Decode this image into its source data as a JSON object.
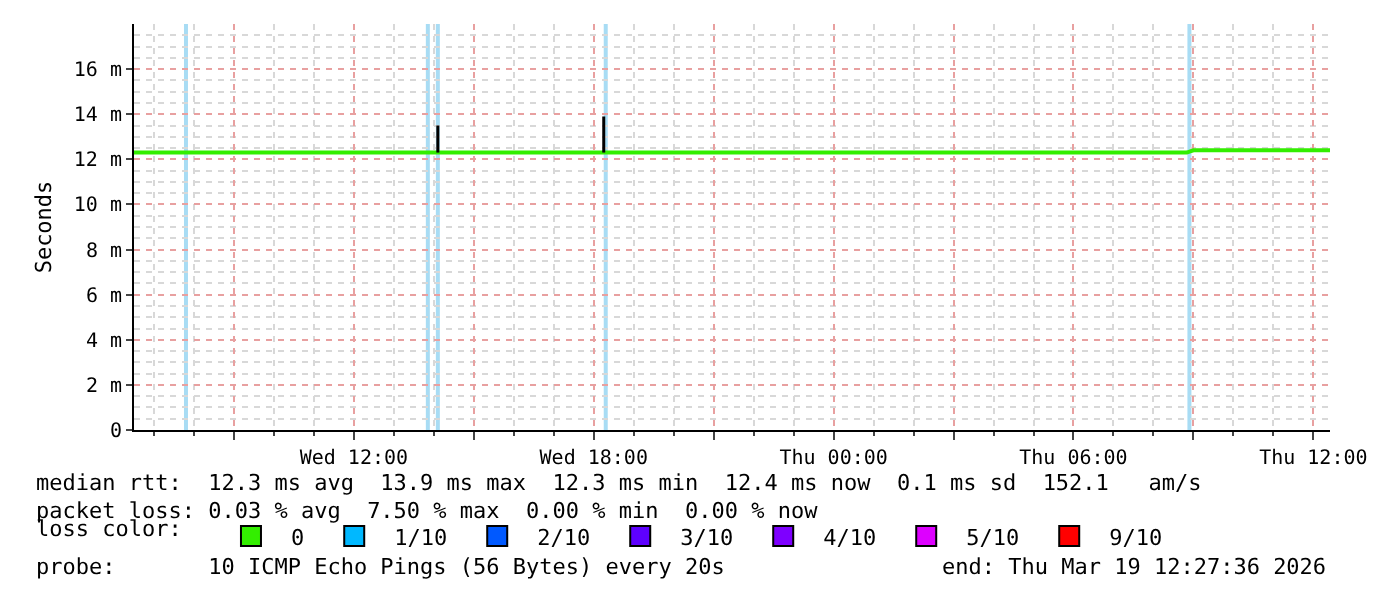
{
  "chart_data": {
    "type": "line",
    "ylabel": "Seconds",
    "legend_title": "loss color:",
    "legend": "bottom",
    "grid": true,
    "xlim": [
      "2026-03-18T06:30",
      "2026-03-19T12:25"
    ],
    "xticks": [
      {
        "value": "2026-03-18T09:00",
        "label": null
      },
      {
        "value": "2026-03-18T12:00",
        "label": "Wed 12:00"
      },
      {
        "value": "2026-03-18T15:00",
        "label": null
      },
      {
        "value": "2026-03-18T18:00",
        "label": "Wed 18:00"
      },
      {
        "value": "2026-03-18T21:00",
        "label": null
      },
      {
        "value": "2026-03-19T00:00",
        "label": "Thu 00:00"
      },
      {
        "value": "2026-03-19T03:00",
        "label": null
      },
      {
        "value": "2026-03-19T06:00",
        "label": "Thu 06:00"
      },
      {
        "value": "2026-03-19T09:00",
        "label": null
      },
      {
        "value": "2026-03-19T12:00",
        "label": "Thu 12:00"
      }
    ],
    "ylim": [
      0,
      18
    ],
    "yticks": [
      0,
      {
        "value": 2,
        "label": "2 m"
      },
      {
        "value": 4,
        "label": "4 m"
      },
      {
        "value": 6,
        "label": "6 m"
      },
      {
        "value": 8,
        "label": "8 m"
      },
      {
        "value": 10,
        "label": "10 m"
      },
      {
        "value": 12,
        "label": "12 m"
      },
      {
        "value": 14,
        "label": "14 m"
      },
      {
        "value": 16,
        "label": "16 m"
      }
    ],
    "series": [
      {
        "name": "0",
        "color": "#33ee00",
        "x": [
          "2026-03-18T06:30",
          "2026-03-18T09:00",
          "2026-03-18T12:00",
          "2026-03-18T15:00",
          "2026-03-18T18:00",
          "2026-03-18T21:00",
          "2026-03-19T00:00",
          "2026-03-19T03:00",
          "2026-03-19T06:00",
          "2026-03-19T08:50",
          "2026-03-19T09:00",
          "2026-03-19T12:25"
        ],
        "values": [
          12.3,
          12.3,
          12.3,
          12.3,
          12.3,
          12.3,
          12.3,
          12.3,
          12.3,
          12.3,
          12.4,
          12.4
        ]
      },
      {
        "color": "#000000",
        "x": [
          "2026-03-18T14:06",
          "2026-03-18T14:06",
          "2026-03-18T16:00",
          "2026-03-18T18:15",
          "2026-03-18T18:15"
        ],
        "values": [
          12.3,
          13.5,
          null,
          12.3,
          13.9
        ]
      },
      {
        "name": "1/10",
        "color": "#00b8ff"
      },
      {
        "name": "2/10",
        "color": "#0059ff"
      },
      {
        "name": "3/10",
        "color": "#5e00ff"
      },
      {
        "name": "4/10",
        "color": "#7e00ff"
      },
      {
        "name": "5/10",
        "color": "#dd00ff"
      },
      {
        "name": "9/10",
        "color": "#ff0000"
      }
    ],
    "ref_lines": [
      {
        "axis": "x",
        "value": "2026-03-18T07:48",
        "color": "#a8dcf4"
      },
      {
        "axis": "x",
        "value": "2026-03-18T13:51",
        "color": "#a8dcf4"
      },
      {
        "axis": "x",
        "value": "2026-03-18T14:06",
        "color": "#a8dcf4"
      },
      {
        "axis": "x",
        "value": "2026-03-18T18:18",
        "color": "#a8dcf4"
      },
      {
        "axis": "x",
        "value": "2026-03-19T08:54",
        "color": "#a8dcf4"
      }
    ],
    "annotations": [
      "median rtt:  12.3 ms avg  13.9 ms max  12.3 ms min  12.4 ms now  0.1 ms sd  152.1   am/s",
      "packet loss: 0.03 % avg  7.50 % max  0.00 % min  0.00 % now",
      "probe:       10 ICMP Echo Pings (56 Bytes) every 20s",
      "end: Thu Mar 19 12:27:36 2026"
    ]
  }
}
